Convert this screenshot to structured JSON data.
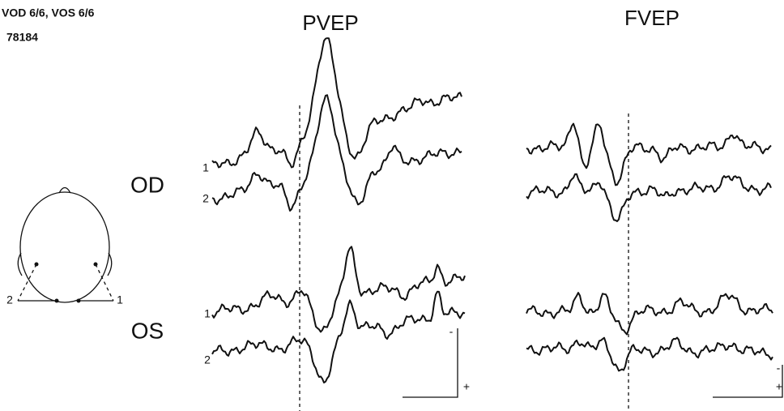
{
  "header": {
    "lines": [
      "VOD 6/6, VOS 6/6",
      "78184"
    ]
  },
  "panels": [
    {
      "title": "PVEP",
      "scale": [
        "-",
        "+"
      ]
    },
    {
      "title": "FVEP",
      "scale": [
        "-",
        "+"
      ]
    }
  ],
  "rows": [
    {
      "label": "OD",
      "traces": [
        "1",
        "2"
      ]
    },
    {
      "label": "OS",
      "traces": [
        "1",
        "2"
      ]
    }
  ],
  "head": {
    "labels": [
      "2",
      "1"
    ]
  }
}
